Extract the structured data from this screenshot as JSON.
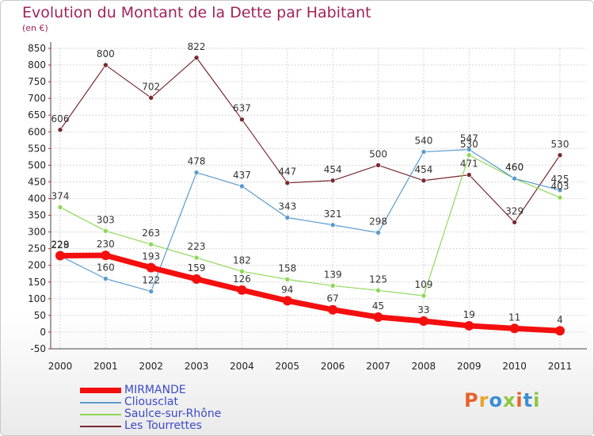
{
  "header": {
    "title": "Evolution du Montant de la Dette par Habitant",
    "unit": "(en €)"
  },
  "logo": {
    "letters": [
      "P",
      "r",
      "o",
      "x",
      "i",
      "t",
      "i"
    ],
    "colors": [
      "#e8622c",
      "#e8a32c",
      "#3a8fd4",
      "#8dc63f",
      "#e8622c",
      "#3a8fd4",
      "#8dc63f"
    ]
  },
  "chart_data": {
    "type": "line",
    "title": "Evolution du Montant de la Dette par Habitant",
    "ylabel": "(en €)",
    "xlabel": "",
    "x": [
      "2000",
      "2001",
      "2002",
      "2003",
      "2004",
      "2005",
      "2006",
      "2007",
      "2008",
      "2009",
      "2010",
      "2011"
    ],
    "ylim": [
      -50,
      850
    ],
    "yticks": [
      -50,
      0,
      50,
      100,
      150,
      200,
      250,
      300,
      350,
      400,
      450,
      500,
      550,
      600,
      650,
      700,
      750,
      800,
      850
    ],
    "grid": true,
    "legend_position": "bottom-left",
    "series": [
      {
        "name": "Les Tourrettes",
        "color": "#7a2a30",
        "values": [
          606,
          800,
          702,
          822,
          637,
          447,
          454,
          500,
          454,
          471,
          329,
          530
        ]
      },
      {
        "name": "Saulce-sur-Rhône",
        "color": "#8ed857",
        "values": [
          374,
          303,
          263,
          223,
          182,
          158,
          139,
          125,
          109,
          530,
          460,
          403
        ]
      },
      {
        "name": "Cliousclat",
        "color": "#5a9bd0",
        "values": [
          228,
          160,
          122,
          478,
          437,
          343,
          321,
          298,
          540,
          547,
          460,
          425
        ]
      },
      {
        "name": "MIRMANDE",
        "color": "#f40f0f",
        "values": [
          229,
          230,
          193,
          159,
          126,
          94,
          67,
          45,
          33,
          19,
          11,
          4
        ]
      }
    ]
  }
}
